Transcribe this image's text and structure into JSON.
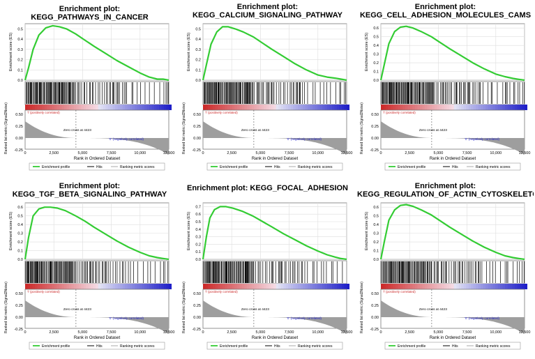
{
  "figure": {
    "x_axis_label": "Rank in Ordered Dataset",
    "y_axis_es_label": "Enrichment score (ES)",
    "y_axis_metric_label": "Ranked list metric (Signal2Noise)",
    "pos_label": "'l' (positively correlated)",
    "neg_label": "'0' (negatively correlated)",
    "zero_cross": "Zero cross at 4423",
    "legend": {
      "profile": "Enrichment profile",
      "hits": "Hits",
      "ranking": "Ranking metric scores"
    },
    "colors": {
      "es_line": "#33cc33",
      "hits": "#000000",
      "red": "#cc2a2a",
      "blue": "#1f1fc8",
      "metric_fill": "#9e9e9e"
    }
  },
  "chart_data": [
    {
      "type": "line",
      "title": "Enrichment plot: KEGG_PATHWAYS_IN_CANCER",
      "title_line1": "Enrichment plot: KEGG_PATHWAYS_IN_CANCER",
      "title_line2": "",
      "xlabel": "Rank in Ordered Dataset",
      "ylabel": "Enrichment score (ES)",
      "x_ticks": [
        "0",
        "2,500",
        "5,000",
        "7,500",
        "10,000",
        "12,500"
      ],
      "y_ticks": [
        "0.0",
        "0.1",
        "0.2",
        "0.3",
        "0.4",
        "0.5"
      ],
      "ylim": [
        0,
        0.55
      ],
      "xlim": [
        0,
        12500
      ],
      "metric_ticks": [
        "0.50",
        "0.25",
        "0.00",
        "-0.25"
      ],
      "es_curve": {
        "x": [
          0,
          300,
          700,
          1200,
          1800,
          2400,
          3000,
          3600,
          4400,
          5200,
          6000,
          7000,
          8000,
          9000,
          10000,
          10800,
          11500,
          12000,
          12500
        ],
        "y": [
          0.0,
          0.12,
          0.3,
          0.44,
          0.51,
          0.53,
          0.52,
          0.5,
          0.45,
          0.39,
          0.33,
          0.26,
          0.19,
          0.13,
          0.07,
          0.03,
          0.01,
          0.01,
          0.0
        ]
      }
    },
    {
      "type": "line",
      "title": "Enrichment plot: KEGG_CALCIUM_SIGNALING_PATHWAY",
      "title_line1": "Enrichment plot:",
      "title_line2": "KEGG_CALCIUM_SIGNALING_PATHWAY",
      "xlabel": "Rank in Ordered Dataset",
      "ylabel": "Enrichment score (ES)",
      "x_ticks": [
        "0",
        "2,500",
        "5,000",
        "7,500",
        "10,000",
        "12,500"
      ],
      "y_ticks": [
        "0.0",
        "0.1",
        "0.2",
        "0.3",
        "0.4",
        "0.5"
      ],
      "ylim": [
        0,
        0.55
      ],
      "xlim": [
        0,
        12500
      ],
      "metric_ticks": [
        "0.50",
        "0.25",
        "0.00",
        "-0.25"
      ],
      "es_curve": {
        "x": [
          0,
          300,
          700,
          1200,
          1700,
          2200,
          2800,
          3500,
          4400,
          5200,
          6000,
          7000,
          8000,
          9000,
          10000,
          10800,
          11500,
          12000,
          12500
        ],
        "y": [
          0.0,
          0.15,
          0.35,
          0.47,
          0.52,
          0.52,
          0.5,
          0.47,
          0.42,
          0.36,
          0.3,
          0.23,
          0.16,
          0.1,
          0.05,
          0.03,
          0.02,
          0.01,
          0.0
        ]
      }
    },
    {
      "type": "line",
      "title": "Enrichment plot: KEGG_CELL_ADHESION_MOLECULES_CAMS",
      "title_line1": "Enrichment plot:",
      "title_line2": "KEGG_CELL_ADHESION_MOLECULES_CAMS",
      "xlabel": "Rank in Ordered Dataset",
      "ylabel": "Enrichment score (ES)",
      "x_ticks": [
        "0",
        "2,500",
        "5,000",
        "7,500",
        "10,000",
        "12,500"
      ],
      "y_ticks": [
        "0.0",
        "0.1",
        "0.2",
        "0.3",
        "0.4",
        "0.5",
        "0.6"
      ],
      "ylim": [
        0,
        0.65
      ],
      "xlim": [
        0,
        12500
      ],
      "metric_ticks": [
        "0.50",
        "0.25",
        "0.00",
        "-0.25"
      ],
      "es_curve": {
        "x": [
          0,
          300,
          700,
          1200,
          1700,
          2200,
          2800,
          3500,
          4400,
          5200,
          6000,
          7000,
          8000,
          9000,
          10000,
          10800,
          11500,
          12000,
          12500
        ],
        "y": [
          0.0,
          0.18,
          0.42,
          0.56,
          0.61,
          0.62,
          0.6,
          0.56,
          0.5,
          0.43,
          0.36,
          0.28,
          0.2,
          0.13,
          0.07,
          0.04,
          0.02,
          0.01,
          0.0
        ]
      }
    },
    {
      "type": "line",
      "title": "Enrichment plot: KEGG_TGF_BETA_SIGNALING_PATHWAY",
      "title_line1": "Enrichment plot:",
      "title_line2": "KEGG_TGF_BETA_SIGNALING_PATHWAY",
      "xlabel": "Rank in Ordered Dataset",
      "ylabel": "Enrichment score (ES)",
      "x_ticks": [
        "0",
        "2,500",
        "5,000",
        "7,500",
        "10,000",
        "12,500"
      ],
      "y_ticks": [
        "0.0",
        "0.1",
        "0.2",
        "0.3",
        "0.4",
        "0.5",
        "0.6"
      ],
      "ylim": [
        0,
        0.65
      ],
      "xlim": [
        0,
        12500
      ],
      "metric_ticks": [
        "0.50",
        "0.25",
        "0.00",
        "-0.25"
      ],
      "es_curve": {
        "x": [
          0,
          300,
          700,
          1200,
          1700,
          2200,
          2800,
          3500,
          4400,
          5200,
          6000,
          7000,
          8000,
          9000,
          10000,
          10800,
          11500,
          12000,
          12500
        ],
        "y": [
          0.0,
          0.25,
          0.5,
          0.58,
          0.6,
          0.6,
          0.59,
          0.56,
          0.5,
          0.44,
          0.37,
          0.29,
          0.21,
          0.14,
          0.08,
          0.04,
          0.02,
          0.01,
          0.0
        ]
      }
    },
    {
      "type": "line",
      "title": "Enrichment plot: KEGG_FOCAL_ADHESION",
      "title_line1": "Enrichment plot: KEGG_FOCAL_ADHESION",
      "title_line2": "",
      "xlabel": "Rank in Ordered Dataset",
      "ylabel": "Enrichment score (ES)",
      "x_ticks": [
        "0",
        "2,500",
        "5,000",
        "7,500",
        "10,000",
        "12,500"
      ],
      "y_ticks": [
        "0.0",
        "0.1",
        "0.2",
        "0.3",
        "0.4",
        "0.5",
        "0.6",
        "0.7"
      ],
      "ylim": [
        0,
        0.75
      ],
      "xlim": [
        0,
        12500
      ],
      "metric_ticks": [
        "0.50",
        "0.25",
        "0.00",
        "-0.25"
      ],
      "es_curve": {
        "x": [
          0,
          300,
          600,
          1000,
          1500,
          2000,
          2600,
          3400,
          4400,
          5200,
          6000,
          7000,
          8000,
          9000,
          10000,
          10800,
          11500,
          12000,
          12500
        ],
        "y": [
          0.0,
          0.3,
          0.55,
          0.66,
          0.7,
          0.7,
          0.68,
          0.64,
          0.57,
          0.5,
          0.43,
          0.34,
          0.26,
          0.18,
          0.11,
          0.06,
          0.03,
          0.01,
          0.0
        ]
      }
    },
    {
      "type": "line",
      "title": "Enrichment plot: KEGG_REGULATION_OF_ACTIN_CYTOSKELETON",
      "title_line1": "Enrichment plot:",
      "title_line2": "KEGG_REGULATION_OF_ACTIN_CYTOSKELETON",
      "xlabel": "Rank in Ordered Dataset",
      "ylabel": "Enrichment score (ES)",
      "x_ticks": [
        "0",
        "2,500",
        "5,000",
        "7,500",
        "10,000",
        "12,500"
      ],
      "y_ticks": [
        "0.0",
        "0.1",
        "0.2",
        "0.3",
        "0.4",
        "0.5",
        "0.6"
      ],
      "ylim": [
        0,
        0.65
      ],
      "xlim": [
        0,
        12500
      ],
      "metric_ticks": [
        "0.50",
        "0.25",
        "0.00",
        "-0.25"
      ],
      "es_curve": {
        "x": [
          0,
          300,
          700,
          1200,
          1700,
          2200,
          2800,
          3500,
          4400,
          5200,
          6000,
          7000,
          8000,
          9000,
          10000,
          10800,
          11500,
          12000,
          12500
        ],
        "y": [
          0.0,
          0.2,
          0.45,
          0.57,
          0.62,
          0.63,
          0.61,
          0.57,
          0.51,
          0.44,
          0.37,
          0.29,
          0.21,
          0.14,
          0.08,
          0.04,
          0.02,
          0.01,
          0.0
        ]
      }
    }
  ]
}
